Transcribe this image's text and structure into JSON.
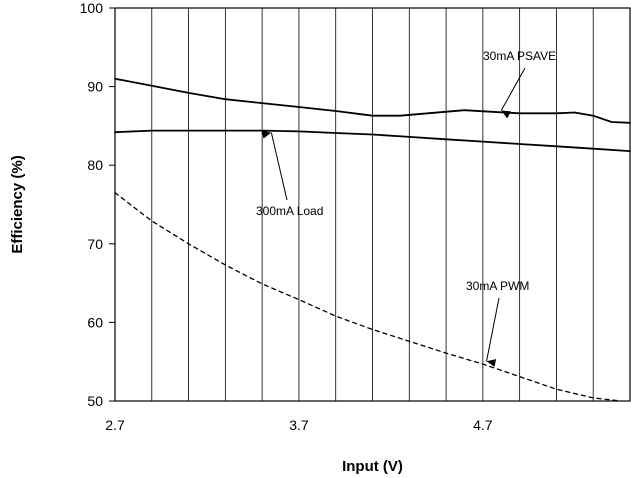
{
  "chart_data": {
    "type": "line",
    "title": "",
    "xlabel": "Input (V)",
    "ylabel": "Efficiency (%)",
    "xlim": [
      2.7,
      5.5
    ],
    "ylim": [
      50,
      100
    ],
    "x_ticks": [
      2.7,
      3.7,
      4.7
    ],
    "x_tick_labels": [
      "2.7",
      "3.7",
      "4.7"
    ],
    "y_ticks": [
      50,
      60,
      70,
      80,
      90,
      100
    ],
    "y_tick_labels": [
      "50",
      "60",
      "70",
      "80",
      "90",
      "100"
    ],
    "grid": {
      "vertical": true,
      "horizontal": false,
      "x_step": 0.2
    },
    "legend": "none",
    "series": [
      {
        "name": "30mA PSAVE",
        "style": "solid",
        "color": "#000000",
        "x": [
          2.7,
          2.9,
          3.1,
          3.3,
          3.5,
          3.7,
          3.9,
          4.1,
          4.25,
          4.4,
          4.6,
          4.75,
          4.9,
          5.0,
          5.1,
          5.2,
          5.3,
          5.4,
          5.5
        ],
        "y": [
          91.0,
          90.1,
          89.2,
          88.4,
          87.9,
          87.4,
          86.9,
          86.3,
          86.3,
          86.6,
          87.0,
          86.8,
          86.6,
          86.6,
          86.6,
          86.7,
          86.3,
          85.5,
          85.4
        ]
      },
      {
        "name": "300mA Load",
        "style": "solid",
        "color": "#000000",
        "x": [
          2.7,
          2.9,
          3.1,
          3.3,
          3.5,
          3.7,
          3.9,
          4.1,
          4.3,
          4.5,
          4.7,
          4.9,
          5.1,
          5.3,
          5.5
        ],
        "y": [
          84.2,
          84.4,
          84.4,
          84.4,
          84.4,
          84.3,
          84.1,
          83.9,
          83.6,
          83.3,
          83.0,
          82.7,
          82.4,
          82.1,
          81.8
        ]
      },
      {
        "name": "30mA PWM",
        "style": "dashed",
        "color": "#000000",
        "x": [
          2.7,
          2.9,
          3.1,
          3.3,
          3.5,
          3.7,
          3.9,
          4.1,
          4.3,
          4.5,
          4.7,
          4.9,
          5.1,
          5.3,
          5.45
        ],
        "y": [
          76.5,
          72.9,
          70.0,
          67.3,
          64.9,
          62.9,
          60.8,
          59.1,
          57.6,
          56.1,
          54.7,
          53.1,
          51.5,
          50.4,
          50.0
        ]
      }
    ],
    "annotations": [
      {
        "text": "30mA PSAVE",
        "series": "30mA PSAVE",
        "arrow_to": {
          "x": 4.8,
          "y": 86.7
        }
      },
      {
        "text": "300mA Load",
        "series": "300mA Load",
        "arrow_to": {
          "x": 3.55,
          "y": 84.4
        }
      },
      {
        "text": "30mA PWM",
        "series": "30mA PWM",
        "arrow_to": {
          "x": 4.72,
          "y": 54.8
        }
      }
    ]
  }
}
